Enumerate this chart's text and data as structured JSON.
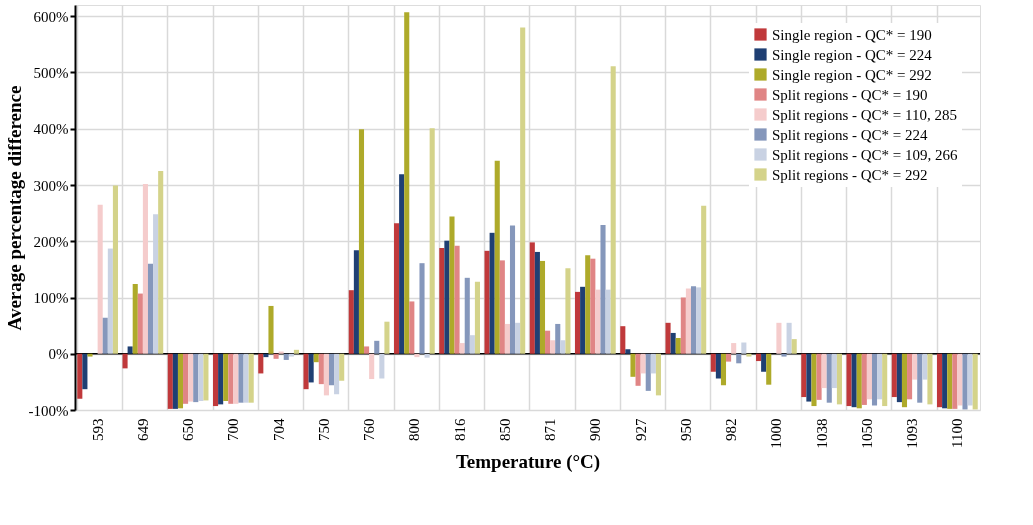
{
  "chart_data": {
    "type": "bar",
    "xlabel": "Temperature (°C)",
    "ylabel": "Average percentage difference",
    "categories": [
      "593",
      "649",
      "650",
      "700",
      "704",
      "750",
      "760",
      "800",
      "816",
      "850",
      "871",
      "900",
      "927",
      "950",
      "982",
      "1000",
      "1038",
      "1050",
      "1093",
      "1100"
    ],
    "series": [
      {
        "name": "Single region - QC* = 190",
        "color": "#c0393b",
        "values": [
          -80,
          -26,
          -98,
          -93,
          -35,
          -63,
          113,
          232,
          188,
          183,
          198,
          110,
          49,
          55,
          -32,
          -13,
          -77,
          -93,
          -77,
          -95
        ]
      },
      {
        "name": "Single region - QC* = 224",
        "color": "#1f3f73",
        "values": [
          -63,
          13,
          -98,
          -90,
          -6,
          -51,
          184,
          319,
          201,
          215,
          181,
          119,
          8,
          37,
          -44,
          -32,
          -85,
          -95,
          -86,
          -97
        ]
      },
      {
        "name": "Single region - QC* = 292",
        "color": "#aeaa2a",
        "values": [
          -5,
          124,
          -97,
          -84,
          85,
          -15,
          399,
          607,
          244,
          343,
          165,
          175,
          -41,
          28,
          -56,
          -55,
          -93,
          -97,
          -95,
          -98
        ]
      },
      {
        "name": "Split regions - QC* = 190",
        "color": "#e08585",
        "values": [
          0,
          107,
          -89,
          -89,
          -9,
          -54,
          13,
          93,
          192,
          166,
          41,
          169,
          -57,
          100,
          -14,
          0,
          -82,
          -91,
          -81,
          -98
        ]
      },
      {
        "name": "Split regions - QC* = 110, 285",
        "color": "#f5cccc",
        "values": [
          265,
          302,
          -85,
          -89,
          4,
          -74,
          -45,
          -6,
          19,
          53,
          24,
          114,
          -35,
          116,
          19,
          55,
          -61,
          -81,
          -46,
          -92
        ]
      },
      {
        "name": "Split regions - QC* = 224",
        "color": "#8597bb",
        "values": [
          64,
          160,
          -86,
          -87,
          -11,
          -56,
          23,
          161,
          135,
          228,
          53,
          229,
          -66,
          120,
          -17,
          -5,
          -87,
          -92,
          -87,
          -99
        ]
      },
      {
        "name": "Split regions - QC* = 109, 266",
        "color": "#c9d2e3",
        "values": [
          187,
          248,
          -84,
          -87,
          -5,
          -72,
          -44,
          -7,
          33,
          55,
          24,
          114,
          -35,
          118,
          20,
          55,
          -61,
          -81,
          -46,
          -92
        ]
      },
      {
        "name": "Split regions - QC* = 292",
        "color": "#d4d38a",
        "values": [
          299,
          325,
          -83,
          -87,
          7,
          -48,
          57,
          401,
          128,
          580,
          152,
          511,
          -74,
          263,
          -5,
          26,
          -90,
          -93,
          -90,
          -99
        ]
      }
    ],
    "ylim": [
      -100,
      620
    ],
    "yticks": [
      {
        "value": -100,
        "label": "-100%"
      },
      {
        "value": 0,
        "label": "0%"
      },
      {
        "value": 100,
        "label": "100%"
      },
      {
        "value": 200,
        "label": "200%"
      },
      {
        "value": 300,
        "label": "300%"
      },
      {
        "value": 400,
        "label": "400%"
      },
      {
        "value": 500,
        "label": "500%"
      },
      {
        "value": 600,
        "label": "600%"
      }
    ],
    "grid": true,
    "legend": "top right"
  }
}
